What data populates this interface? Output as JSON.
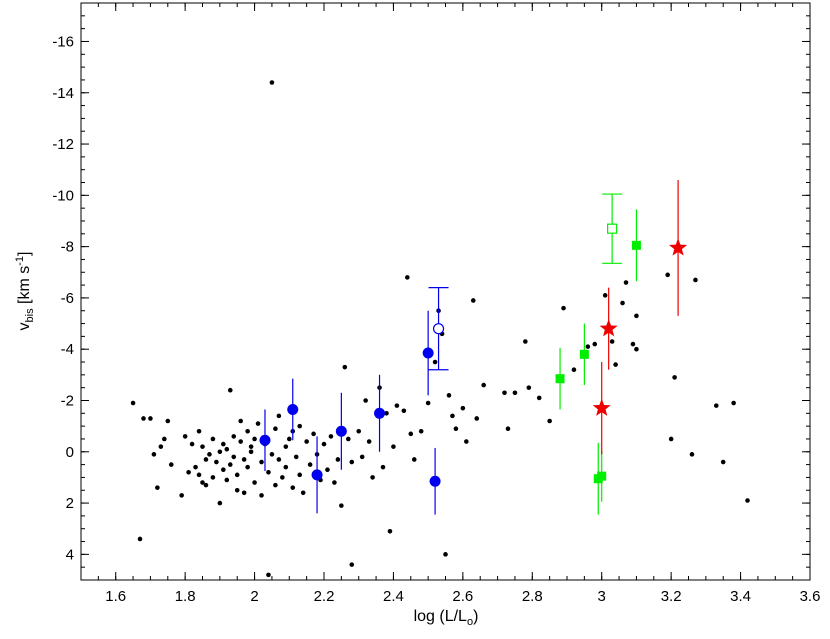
{
  "chart_data": {
    "type": "scatter",
    "title": "",
    "xlabel": "log (L/L",
    "xlabel_sub": "o",
    "xlabel_end": ")",
    "ylabel": "v",
    "ylabel_sub": "bis",
    "ylabel_rest": " [km s",
    "ylabel_sup": "-1",
    "ylabel_end": "]",
    "xlim": [
      1.5,
      3.6
    ],
    "ylim": [
      5.0,
      -17.5
    ],
    "y_inverted": true,
    "grid": false,
    "x_ticks": [
      1.6,
      1.8,
      2.0,
      2.2,
      2.4,
      2.6,
      2.8,
      3.0,
      3.2,
      3.4,
      3.6
    ],
    "x_tick_labels": [
      "1.6",
      "1.8",
      "2",
      "2.2",
      "2.4",
      "2.6",
      "2.8",
      "3",
      "3.2",
      "3.4",
      "3.6"
    ],
    "y_ticks": [
      4,
      2,
      0,
      -2,
      -4,
      -6,
      -8,
      -10,
      -12,
      -14,
      -16
    ],
    "y_tick_labels": [
      "4",
      "2",
      "0",
      "-2",
      "-4",
      "-6",
      "-8",
      "-10",
      "-12",
      "-14",
      "-16"
    ],
    "colors": {
      "background_points": "#000000",
      "blue": "#0000ee",
      "green": "#00ee00",
      "red": "#ee0000"
    },
    "series": [
      {
        "marker": "small-dot",
        "color": "#000000",
        "points": [
          [
            1.65,
            -1.9
          ],
          [
            1.67,
            3.4
          ],
          [
            1.68,
            -1.3
          ],
          [
            1.7,
            -1.3
          ],
          [
            1.71,
            0.1
          ],
          [
            1.72,
            1.4
          ],
          [
            1.73,
            -0.2
          ],
          [
            1.74,
            -0.5
          ],
          [
            1.75,
            -1.2
          ],
          [
            1.76,
            0.5
          ],
          [
            1.79,
            1.7
          ],
          [
            1.8,
            -0.6
          ],
          [
            1.81,
            0.8
          ],
          [
            1.82,
            -0.3
          ],
          [
            1.83,
            0.6
          ],
          [
            1.84,
            0.9
          ],
          [
            1.84,
            -0.8
          ],
          [
            1.85,
            1.2
          ],
          [
            1.85,
            -0.2
          ],
          [
            1.86,
            1.3
          ],
          [
            1.86,
            0.3
          ],
          [
            1.87,
            0.1
          ],
          [
            1.88,
            1.0
          ],
          [
            1.88,
            -0.5
          ],
          [
            1.89,
            0.4
          ],
          [
            1.9,
            2.0
          ],
          [
            1.9,
            0.0
          ],
          [
            1.91,
            0.7
          ],
          [
            1.91,
            -0.3
          ],
          [
            1.92,
            1.1
          ],
          [
            1.92,
            -0.1
          ],
          [
            1.93,
            -2.4
          ],
          [
            1.93,
            0.5
          ],
          [
            1.94,
            -0.6
          ],
          [
            1.94,
            0.2
          ],
          [
            1.95,
            1.5
          ],
          [
            1.95,
            0.9
          ],
          [
            1.96,
            -0.4
          ],
          [
            1.96,
            -1.2
          ],
          [
            1.97,
            0.3
          ],
          [
            1.97,
            1.6
          ],
          [
            1.98,
            -0.8
          ],
          [
            1.98,
            0.6
          ],
          [
            1.99,
            0.0
          ],
          [
            1.99,
            -0.2
          ],
          [
            2.0,
            1.2
          ],
          [
            2.0,
            -0.5
          ],
          [
            2.01,
            -1.1
          ],
          [
            2.02,
            0.4
          ],
          [
            2.02,
            1.7
          ],
          [
            2.03,
            -0.3
          ],
          [
            2.04,
            0.8
          ],
          [
            2.04,
            4.8
          ],
          [
            2.05,
            -14.4
          ],
          [
            2.05,
            0.1
          ],
          [
            2.06,
            1.3
          ],
          [
            2.06,
            -0.9
          ],
          [
            2.07,
            -1.4
          ],
          [
            2.07,
            0.3
          ],
          [
            2.08,
            1.0
          ],
          [
            2.09,
            -0.2
          ],
          [
            2.09,
            0.6
          ],
          [
            2.1,
            -0.5
          ],
          [
            2.11,
            1.4
          ],
          [
            2.11,
            -0.8
          ],
          [
            2.12,
            0.2
          ],
          [
            2.13,
            -1.0
          ],
          [
            2.13,
            0.9
          ],
          [
            2.14,
            1.6
          ],
          [
            2.15,
            -0.4
          ],
          [
            2.16,
            0.5
          ],
          [
            2.17,
            -0.7
          ],
          [
            2.18,
            0.1
          ],
          [
            2.19,
            1.1
          ],
          [
            2.2,
            -0.3
          ],
          [
            2.21,
            0.7
          ],
          [
            2.22,
            -0.6
          ],
          [
            2.23,
            1.2
          ],
          [
            2.24,
            0.3
          ],
          [
            2.25,
            2.1
          ],
          [
            2.26,
            -3.3
          ],
          [
            2.27,
            -0.5
          ],
          [
            2.28,
            0.4
          ],
          [
            2.28,
            4.4
          ],
          [
            2.3,
            -0.8
          ],
          [
            2.31,
            0.2
          ],
          [
            2.32,
            -2.0
          ],
          [
            2.33,
            -0.4
          ],
          [
            2.34,
            1.0
          ],
          [
            2.36,
            -2.5
          ],
          [
            2.37,
            0.6
          ],
          [
            2.38,
            -1.5
          ],
          [
            2.39,
            3.1
          ],
          [
            2.4,
            -0.2
          ],
          [
            2.41,
            -1.8
          ],
          [
            2.43,
            -1.6
          ],
          [
            2.44,
            -6.8
          ],
          [
            2.45,
            -0.7
          ],
          [
            2.46,
            0.3
          ],
          [
            2.48,
            -0.8
          ],
          [
            2.5,
            -1.9
          ],
          [
            2.52,
            -3.5
          ],
          [
            2.53,
            -5.5
          ],
          [
            2.54,
            -4.6
          ],
          [
            2.55,
            4.0
          ],
          [
            2.56,
            -2.2
          ],
          [
            2.57,
            -1.4
          ],
          [
            2.58,
            -0.9
          ],
          [
            2.6,
            -1.7
          ],
          [
            2.61,
            -0.4
          ],
          [
            2.63,
            -5.9
          ],
          [
            2.64,
            -1.3
          ],
          [
            2.66,
            -2.6
          ],
          [
            2.72,
            -2.3
          ],
          [
            2.73,
            -0.9
          ],
          [
            2.75,
            -2.3
          ],
          [
            2.78,
            -4.3
          ],
          [
            2.79,
            -2.5
          ],
          [
            2.82,
            -2.1
          ],
          [
            2.85,
            -1.2
          ],
          [
            2.89,
            -5.6
          ],
          [
            2.92,
            -3.2
          ],
          [
            2.96,
            -4.1
          ],
          [
            2.98,
            -4.2
          ],
          [
            3.01,
            -6.1
          ],
          [
            3.03,
            -4.3
          ],
          [
            3.04,
            -3.4
          ],
          [
            3.06,
            -5.8
          ],
          [
            3.07,
            -6.6
          ],
          [
            3.09,
            -4.2
          ],
          [
            3.1,
            -5.3
          ],
          [
            3.1,
            -4.0
          ],
          [
            3.19,
            -6.9
          ],
          [
            3.2,
            -0.5
          ],
          [
            3.21,
            -2.9
          ],
          [
            3.26,
            0.1
          ],
          [
            3.27,
            -6.7
          ],
          [
            3.33,
            -1.8
          ],
          [
            3.35,
            0.4
          ],
          [
            3.38,
            -1.9
          ],
          [
            3.42,
            1.9
          ]
        ]
      },
      {
        "marker": "filled-circle",
        "color": "#0000ee",
        "points": [
          {
            "x": 2.03,
            "y": -0.45,
            "err": 1.2
          },
          {
            "x": 2.11,
            "y": -1.65,
            "err": 1.2
          },
          {
            "x": 2.18,
            "y": 0.9,
            "err": 1.5
          },
          {
            "x": 2.25,
            "y": -0.8,
            "err": 1.5
          },
          {
            "x": 2.36,
            "y": -1.5,
            "err": 1.5
          },
          {
            "x": 2.5,
            "y": -3.85,
            "err": 1.65
          },
          {
            "x": 2.52,
            "y": 1.15,
            "err": 1.3
          }
        ]
      },
      {
        "marker": "open-circle",
        "color": "#0000ee",
        "points": [
          {
            "x": 2.53,
            "y": -4.8,
            "err": 1.6
          }
        ]
      },
      {
        "marker": "filled-square",
        "color": "#00ee00",
        "points": [
          {
            "x": 2.88,
            "y": -2.85,
            "err": 1.2
          },
          {
            "x": 2.95,
            "y": -3.8,
            "err": 1.2
          },
          {
            "x": 2.99,
            "y": 1.05,
            "err": 1.4
          },
          {
            "x": 3.0,
            "y": 0.95,
            "err": 1.0
          },
          {
            "x": 3.1,
            "y": -8.05,
            "err": 1.4
          }
        ]
      },
      {
        "marker": "open-square",
        "color": "#00ee00",
        "points": [
          {
            "x": 3.03,
            "y": -8.7,
            "err": 1.35
          }
        ]
      },
      {
        "marker": "star",
        "color": "#ee0000",
        "points": [
          {
            "x": 3.0,
            "y": -1.7,
            "err": 1.8
          },
          {
            "x": 3.02,
            "y": -4.8,
            "err": 1.6
          },
          {
            "x": 3.22,
            "y": -7.95,
            "err": 2.65
          }
        ]
      }
    ]
  }
}
